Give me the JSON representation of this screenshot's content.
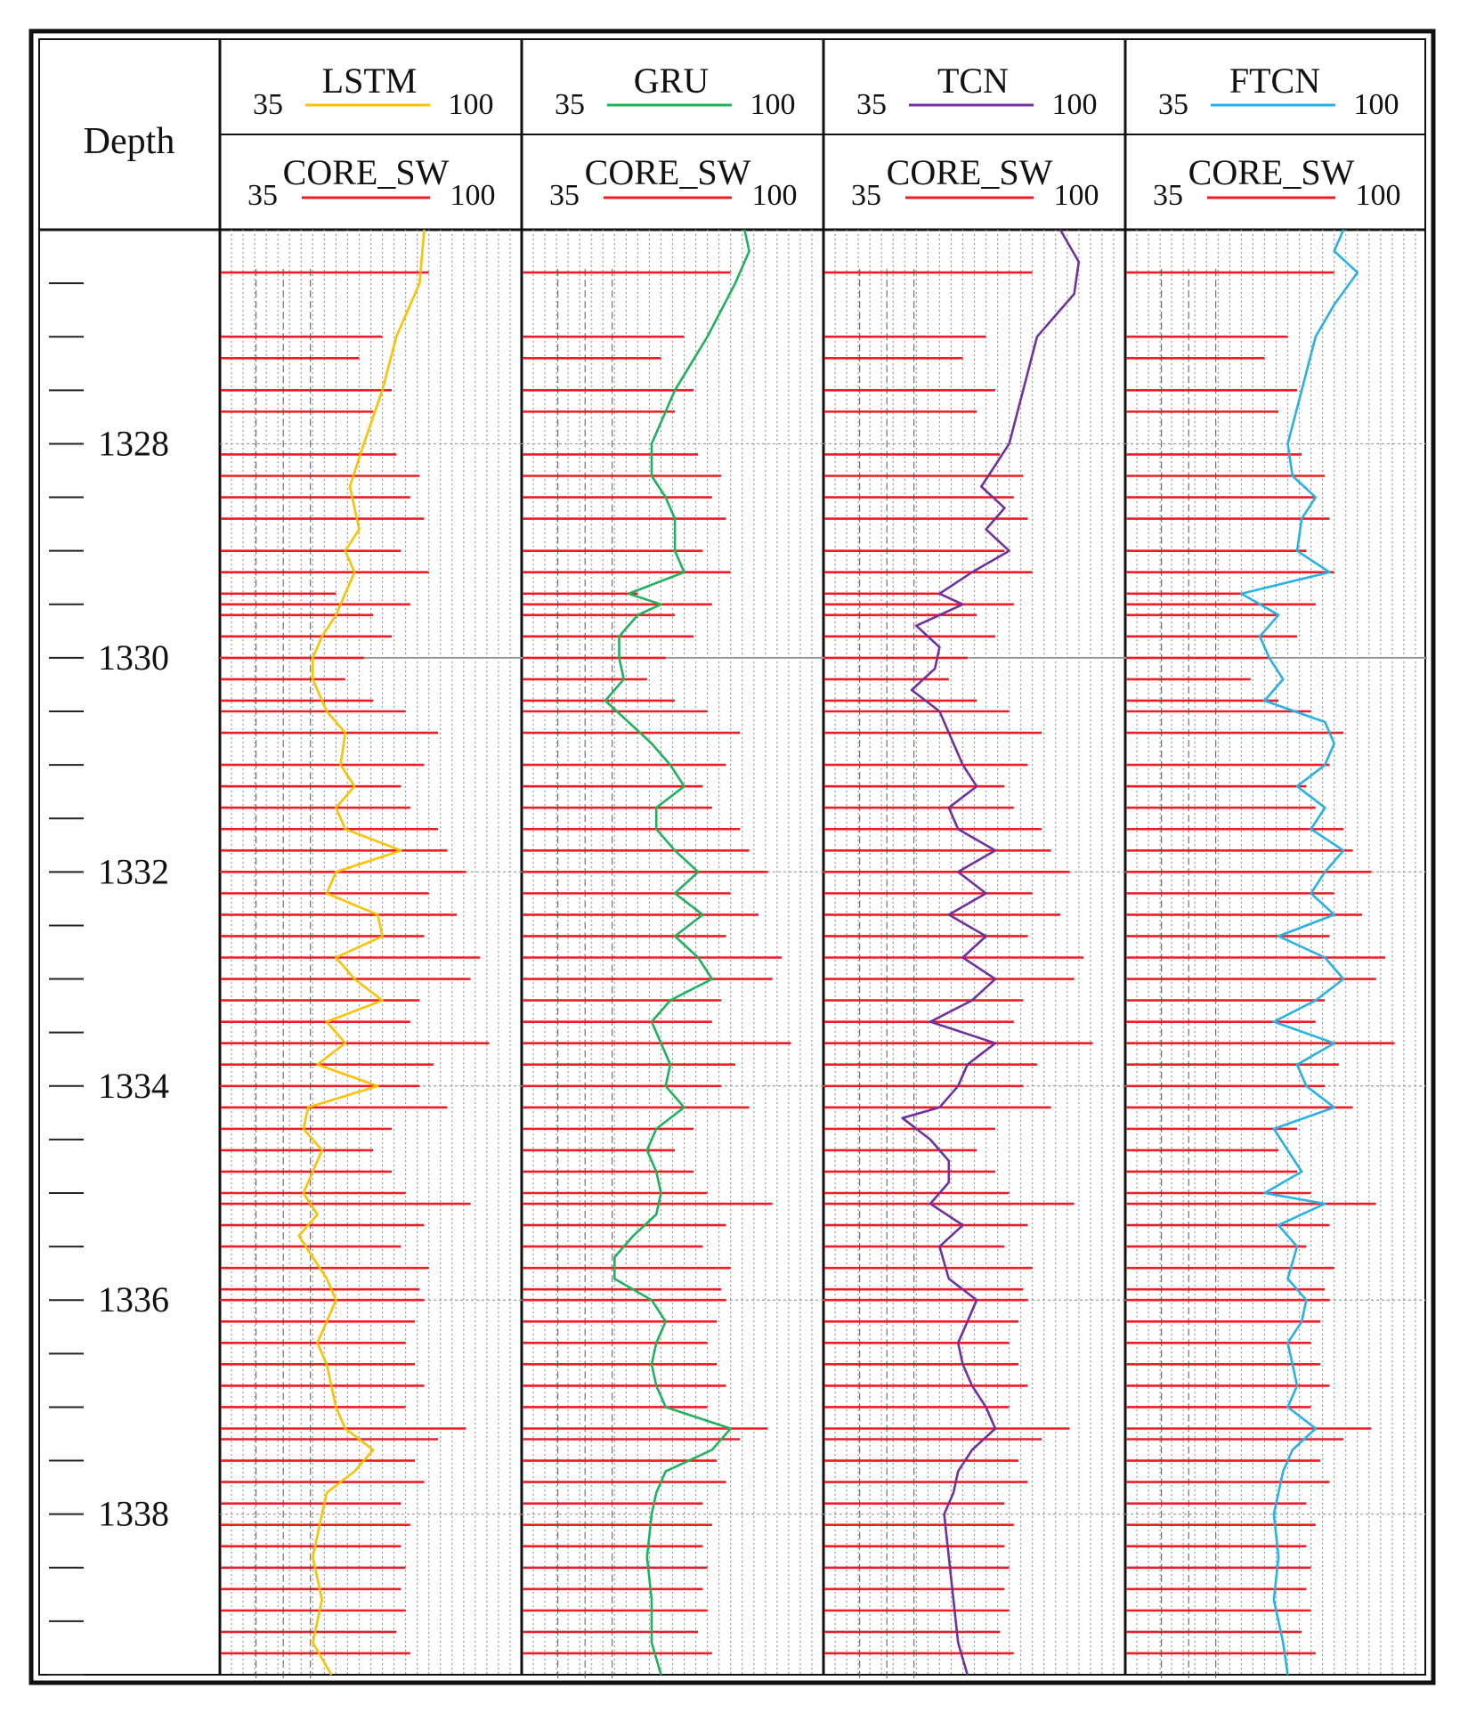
{
  "chart_data": {
    "type": "well-log",
    "depth_label": "Depth",
    "depth_ticks": [
      1328,
      1330,
      1332,
      1334,
      1336,
      1338
    ],
    "depth_range": [
      1326.0,
      1339.5
    ],
    "x_range": [
      35,
      100
    ],
    "core_label": "CORE_SW",
    "colors": {
      "core": "#ee1c25",
      "LSTM": "#ffc000",
      "GRU": "#1fb25a",
      "TCN": "#7030a0",
      "FTCN": "#27b1e6"
    },
    "tracks": [
      {
        "name": "LSTM",
        "min": "35",
        "max": "100",
        "core_min": "35",
        "core_max": "100",
        "values": [
          [
            1326.0,
            79
          ],
          [
            1326.5,
            78
          ],
          [
            1327.0,
            73
          ],
          [
            1327.5,
            70
          ],
          [
            1328.0,
            66
          ],
          [
            1328.4,
            63
          ],
          [
            1328.8,
            65
          ],
          [
            1329.0,
            62
          ],
          [
            1329.2,
            64
          ],
          [
            1329.6,
            60
          ],
          [
            1329.8,
            57
          ],
          [
            1330.0,
            55
          ],
          [
            1330.2,
            55
          ],
          [
            1330.5,
            58
          ],
          [
            1330.7,
            62
          ],
          [
            1331.0,
            61
          ],
          [
            1331.2,
            64
          ],
          [
            1331.4,
            60
          ],
          [
            1331.6,
            62
          ],
          [
            1331.8,
            74
          ],
          [
            1332.0,
            60
          ],
          [
            1332.2,
            58
          ],
          [
            1332.4,
            69
          ],
          [
            1332.6,
            70
          ],
          [
            1332.8,
            60
          ],
          [
            1333.0,
            64
          ],
          [
            1333.2,
            70
          ],
          [
            1333.4,
            58
          ],
          [
            1333.6,
            62
          ],
          [
            1333.8,
            56
          ],
          [
            1334.0,
            69
          ],
          [
            1334.2,
            54
          ],
          [
            1334.4,
            53
          ],
          [
            1334.6,
            57
          ],
          [
            1334.8,
            55
          ],
          [
            1335.0,
            53
          ],
          [
            1335.2,
            56
          ],
          [
            1335.4,
            52
          ],
          [
            1335.6,
            55
          ],
          [
            1335.8,
            58
          ],
          [
            1336.0,
            60
          ],
          [
            1336.2,
            58
          ],
          [
            1336.4,
            56
          ],
          [
            1336.6,
            58
          ],
          [
            1336.8,
            59
          ],
          [
            1337.0,
            60
          ],
          [
            1337.2,
            62
          ],
          [
            1337.4,
            68
          ],
          [
            1337.6,
            64
          ],
          [
            1337.8,
            58
          ],
          [
            1338.0,
            57
          ],
          [
            1338.4,
            55
          ],
          [
            1338.8,
            57
          ],
          [
            1339.2,
            55
          ],
          [
            1339.5,
            59
          ]
        ]
      },
      {
        "name": "GRU",
        "min": "35",
        "max": "100",
        "core_min": "35",
        "core_max": "100",
        "values": [
          [
            1326.0,
            83
          ],
          [
            1326.2,
            84
          ],
          [
            1326.5,
            81
          ],
          [
            1327.0,
            75
          ],
          [
            1327.5,
            68
          ],
          [
            1328.0,
            63
          ],
          [
            1328.3,
            63
          ],
          [
            1328.5,
            66
          ],
          [
            1328.7,
            68
          ],
          [
            1329.0,
            68
          ],
          [
            1329.2,
            70
          ],
          [
            1329.4,
            58
          ],
          [
            1329.5,
            65
          ],
          [
            1329.6,
            60
          ],
          [
            1329.8,
            56
          ],
          [
            1330.0,
            56
          ],
          [
            1330.2,
            57
          ],
          [
            1330.4,
            53
          ],
          [
            1330.6,
            58
          ],
          [
            1330.8,
            63
          ],
          [
            1331.0,
            67
          ],
          [
            1331.2,
            70
          ],
          [
            1331.4,
            64
          ],
          [
            1331.6,
            64
          ],
          [
            1331.8,
            68
          ],
          [
            1332.0,
            73
          ],
          [
            1332.2,
            68
          ],
          [
            1332.4,
            74
          ],
          [
            1332.6,
            68
          ],
          [
            1332.8,
            73
          ],
          [
            1333.0,
            76
          ],
          [
            1333.2,
            67
          ],
          [
            1333.4,
            63
          ],
          [
            1333.6,
            65
          ],
          [
            1333.8,
            67
          ],
          [
            1334.0,
            66
          ],
          [
            1334.2,
            70
          ],
          [
            1334.4,
            64
          ],
          [
            1334.6,
            62
          ],
          [
            1334.8,
            64
          ],
          [
            1335.0,
            65
          ],
          [
            1335.2,
            64
          ],
          [
            1335.4,
            59
          ],
          [
            1335.6,
            55
          ],
          [
            1335.8,
            55
          ],
          [
            1336.0,
            63
          ],
          [
            1336.2,
            66
          ],
          [
            1336.4,
            64
          ],
          [
            1336.6,
            63
          ],
          [
            1336.8,
            64
          ],
          [
            1337.0,
            66
          ],
          [
            1337.2,
            80
          ],
          [
            1337.4,
            76
          ],
          [
            1337.6,
            66
          ],
          [
            1337.8,
            64
          ],
          [
            1338.0,
            63
          ],
          [
            1338.4,
            62
          ],
          [
            1338.8,
            63
          ],
          [
            1339.2,
            63
          ],
          [
            1339.5,
            65
          ]
        ]
      },
      {
        "name": "TCN",
        "min": "35",
        "max": "100",
        "core_min": "35",
        "core_max": "100",
        "values": [
          [
            1326.0,
            86
          ],
          [
            1326.3,
            90
          ],
          [
            1326.6,
            89
          ],
          [
            1327.0,
            81
          ],
          [
            1327.5,
            78
          ],
          [
            1328.0,
            75
          ],
          [
            1328.2,
            72
          ],
          [
            1328.4,
            69
          ],
          [
            1328.6,
            74
          ],
          [
            1328.8,
            70
          ],
          [
            1329.0,
            75
          ],
          [
            1329.2,
            67
          ],
          [
            1329.4,
            60
          ],
          [
            1329.5,
            65
          ],
          [
            1329.7,
            55
          ],
          [
            1329.9,
            60
          ],
          [
            1330.1,
            59
          ],
          [
            1330.3,
            54
          ],
          [
            1330.5,
            60
          ],
          [
            1330.7,
            62
          ],
          [
            1331.0,
            65
          ],
          [
            1331.2,
            68
          ],
          [
            1331.4,
            62
          ],
          [
            1331.6,
            64
          ],
          [
            1331.8,
            72
          ],
          [
            1332.0,
            64
          ],
          [
            1332.2,
            70
          ],
          [
            1332.4,
            62
          ],
          [
            1332.6,
            70
          ],
          [
            1332.8,
            65
          ],
          [
            1333.0,
            72
          ],
          [
            1333.2,
            67
          ],
          [
            1333.4,
            58
          ],
          [
            1333.6,
            72
          ],
          [
            1333.8,
            66
          ],
          [
            1334.0,
            64
          ],
          [
            1334.2,
            60
          ],
          [
            1334.3,
            52
          ],
          [
            1334.5,
            58
          ],
          [
            1334.7,
            62
          ],
          [
            1334.9,
            62
          ],
          [
            1335.1,
            58
          ],
          [
            1335.3,
            65
          ],
          [
            1335.5,
            60
          ],
          [
            1335.8,
            62
          ],
          [
            1336.0,
            68
          ],
          [
            1336.2,
            66
          ],
          [
            1336.4,
            64
          ],
          [
            1336.6,
            65
          ],
          [
            1336.8,
            67
          ],
          [
            1337.0,
            70
          ],
          [
            1337.2,
            72
          ],
          [
            1337.4,
            67
          ],
          [
            1337.6,
            64
          ],
          [
            1337.8,
            63
          ],
          [
            1338.0,
            61
          ],
          [
            1338.4,
            62
          ],
          [
            1338.8,
            63
          ],
          [
            1339.2,
            64
          ],
          [
            1339.5,
            66
          ]
        ]
      },
      {
        "name": "FTCN",
        "min": "35",
        "max": "100",
        "core_min": "35",
        "core_max": "100",
        "values": [
          [
            1326.0,
            82
          ],
          [
            1326.2,
            80
          ],
          [
            1326.4,
            85
          ],
          [
            1326.7,
            80
          ],
          [
            1327.0,
            76
          ],
          [
            1327.5,
            73
          ],
          [
            1328.0,
            70
          ],
          [
            1328.3,
            71
          ],
          [
            1328.5,
            76
          ],
          [
            1328.7,
            73
          ],
          [
            1329.0,
            72
          ],
          [
            1329.2,
            79
          ],
          [
            1329.4,
            60
          ],
          [
            1329.6,
            68
          ],
          [
            1329.8,
            64
          ],
          [
            1330.0,
            66
          ],
          [
            1330.2,
            69
          ],
          [
            1330.4,
            65
          ],
          [
            1330.6,
            78
          ],
          [
            1330.8,
            80
          ],
          [
            1331.0,
            78
          ],
          [
            1331.2,
            72
          ],
          [
            1331.4,
            78
          ],
          [
            1331.6,
            75
          ],
          [
            1331.8,
            82
          ],
          [
            1332.0,
            78
          ],
          [
            1332.2,
            75
          ],
          [
            1332.4,
            80
          ],
          [
            1332.6,
            68
          ],
          [
            1332.8,
            78
          ],
          [
            1333.0,
            82
          ],
          [
            1333.2,
            76
          ],
          [
            1333.4,
            67
          ],
          [
            1333.6,
            80
          ],
          [
            1333.8,
            72
          ],
          [
            1334.0,
            74
          ],
          [
            1334.2,
            80
          ],
          [
            1334.4,
            67
          ],
          [
            1334.6,
            70
          ],
          [
            1334.8,
            73
          ],
          [
            1335.0,
            65
          ],
          [
            1335.1,
            78
          ],
          [
            1335.3,
            68
          ],
          [
            1335.5,
            72
          ],
          [
            1335.8,
            70
          ],
          [
            1336.0,
            74
          ],
          [
            1336.2,
            73
          ],
          [
            1336.4,
            70
          ],
          [
            1336.6,
            71
          ],
          [
            1336.8,
            72
          ],
          [
            1337.0,
            70
          ],
          [
            1337.2,
            76
          ],
          [
            1337.4,
            71
          ],
          [
            1337.6,
            69
          ],
          [
            1337.8,
            68
          ],
          [
            1338.0,
            67
          ],
          [
            1338.4,
            68
          ],
          [
            1338.8,
            67
          ],
          [
            1339.2,
            69
          ],
          [
            1339.5,
            70
          ]
        ]
      }
    ],
    "core_sw": [
      [
        1326.4,
        80
      ],
      [
        1327.0,
        70
      ],
      [
        1327.2,
        65
      ],
      [
        1327.5,
        72
      ],
      [
        1327.7,
        68
      ],
      [
        1328.1,
        73
      ],
      [
        1328.3,
        78
      ],
      [
        1328.5,
        76
      ],
      [
        1328.7,
        79
      ],
      [
        1329.0,
        74
      ],
      [
        1329.2,
        80
      ],
      [
        1329.4,
        60
      ],
      [
        1329.5,
        76
      ],
      [
        1329.6,
        68
      ],
      [
        1329.8,
        72
      ],
      [
        1330.0,
        66
      ],
      [
        1330.2,
        62
      ],
      [
        1330.4,
        68
      ],
      [
        1330.5,
        75
      ],
      [
        1330.7,
        82
      ],
      [
        1331.0,
        79
      ],
      [
        1331.2,
        74
      ],
      [
        1331.4,
        76
      ],
      [
        1331.6,
        82
      ],
      [
        1331.8,
        84
      ],
      [
        1332.0,
        88
      ],
      [
        1332.2,
        80
      ],
      [
        1332.4,
        86
      ],
      [
        1332.6,
        79
      ],
      [
        1332.8,
        91
      ],
      [
        1333.0,
        89
      ],
      [
        1333.2,
        78
      ],
      [
        1333.4,
        76
      ],
      [
        1333.6,
        93
      ],
      [
        1333.8,
        81
      ],
      [
        1334.0,
        78
      ],
      [
        1334.2,
        84
      ],
      [
        1334.4,
        72
      ],
      [
        1334.6,
        68
      ],
      [
        1334.8,
        72
      ],
      [
        1335.0,
        75
      ],
      [
        1335.1,
        89
      ],
      [
        1335.3,
        79
      ],
      [
        1335.5,
        74
      ],
      [
        1335.7,
        80
      ],
      [
        1335.9,
        78
      ],
      [
        1336.0,
        79
      ],
      [
        1336.2,
        77
      ],
      [
        1336.4,
        75
      ],
      [
        1336.6,
        77
      ],
      [
        1336.8,
        79
      ],
      [
        1337.0,
        75
      ],
      [
        1337.2,
        88
      ],
      [
        1337.3,
        82
      ],
      [
        1337.5,
        77
      ],
      [
        1337.7,
        79
      ],
      [
        1337.9,
        74
      ],
      [
        1338.1,
        76
      ],
      [
        1338.3,
        74
      ],
      [
        1338.5,
        75
      ],
      [
        1338.7,
        74
      ],
      [
        1338.9,
        75
      ],
      [
        1339.1,
        73
      ],
      [
        1339.3,
        76
      ]
    ],
    "legend_placement": "top",
    "grid": true
  }
}
